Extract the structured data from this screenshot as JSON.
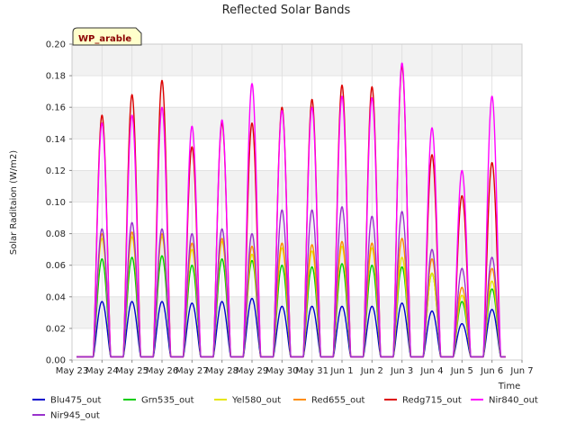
{
  "chart_data": {
    "type": "line",
    "title": "Reflected Solar Bands",
    "xlabel": "Time",
    "ylabel": "Solar Raditaion (W/m2)",
    "site_label": "WP_arable",
    "ylim": [
      0,
      0.2
    ],
    "yticks": [
      "0.00",
      "0.02",
      "0.04",
      "0.06",
      "0.08",
      "0.10",
      "0.12",
      "0.14",
      "0.16",
      "0.18",
      "0.20"
    ],
    "xticks": [
      "May 23",
      "May 24",
      "May 25",
      "May 26",
      "May 27",
      "May 28",
      "May 29",
      "May 30",
      "May 31",
      "Jun 1",
      "Jun 2",
      "Jun 3",
      "Jun 4",
      "Jun 5",
      "Jun 6",
      "Jun 7"
    ],
    "grid": true,
    "legend_position": "bottom",
    "day_labels": [
      "May 24",
      "May 25",
      "May 26",
      "May 27",
      "May 28",
      "May 29",
      "May 30",
      "May 31",
      "Jun 1",
      "Jun 2",
      "Jun 3",
      "Jun 4",
      "Jun 5",
      "Jun 6"
    ],
    "series": [
      {
        "name": "Blu475_out",
        "color": "#0000cc",
        "daily_peaks": [
          0.037,
          0.037,
          0.037,
          0.036,
          0.037,
          0.039,
          0.034,
          0.034,
          0.034,
          0.034,
          0.036,
          0.031,
          0.023,
          0.032
        ]
      },
      {
        "name": "Grn535_out",
        "color": "#00cc00",
        "daily_peaks": [
          0.064,
          0.065,
          0.066,
          0.06,
          0.064,
          0.063,
          0.06,
          0.059,
          0.061,
          0.06,
          0.059,
          0.055,
          0.037,
          0.045
        ]
      },
      {
        "name": "Yel580_out",
        "color": "#e6e600",
        "daily_peaks": [
          0.077,
          0.078,
          0.078,
          0.07,
          0.075,
          0.067,
          0.071,
          0.069,
          0.072,
          0.071,
          0.065,
          0.055,
          0.041,
          0.05
        ]
      },
      {
        "name": "Red655_out",
        "color": "#ff8c00",
        "daily_peaks": [
          0.08,
          0.081,
          0.08,
          0.074,
          0.077,
          0.072,
          0.074,
          0.073,
          0.075,
          0.074,
          0.077,
          0.064,
          0.046,
          0.058
        ]
      },
      {
        "name": "Redg715_out",
        "color": "#dd0000",
        "daily_peaks": [
          0.155,
          0.168,
          0.177,
          0.135,
          0.15,
          0.15,
          0.16,
          0.165,
          0.174,
          0.173,
          0.186,
          0.13,
          0.104,
          0.125
        ]
      },
      {
        "name": "Nir840_out",
        "color": "#ff00ff",
        "daily_peaks": [
          0.15,
          0.155,
          0.16,
          0.148,
          0.152,
          0.175,
          0.158,
          0.16,
          0.167,
          0.166,
          0.188,
          0.147,
          0.12,
          0.167
        ]
      },
      {
        "name": "Nir945_out",
        "color": "#9932cc",
        "daily_peaks": [
          0.083,
          0.087,
          0.083,
          0.08,
          0.083,
          0.08,
          0.095,
          0.095,
          0.097,
          0.091,
          0.094,
          0.07,
          0.058,
          0.065
        ]
      }
    ]
  }
}
